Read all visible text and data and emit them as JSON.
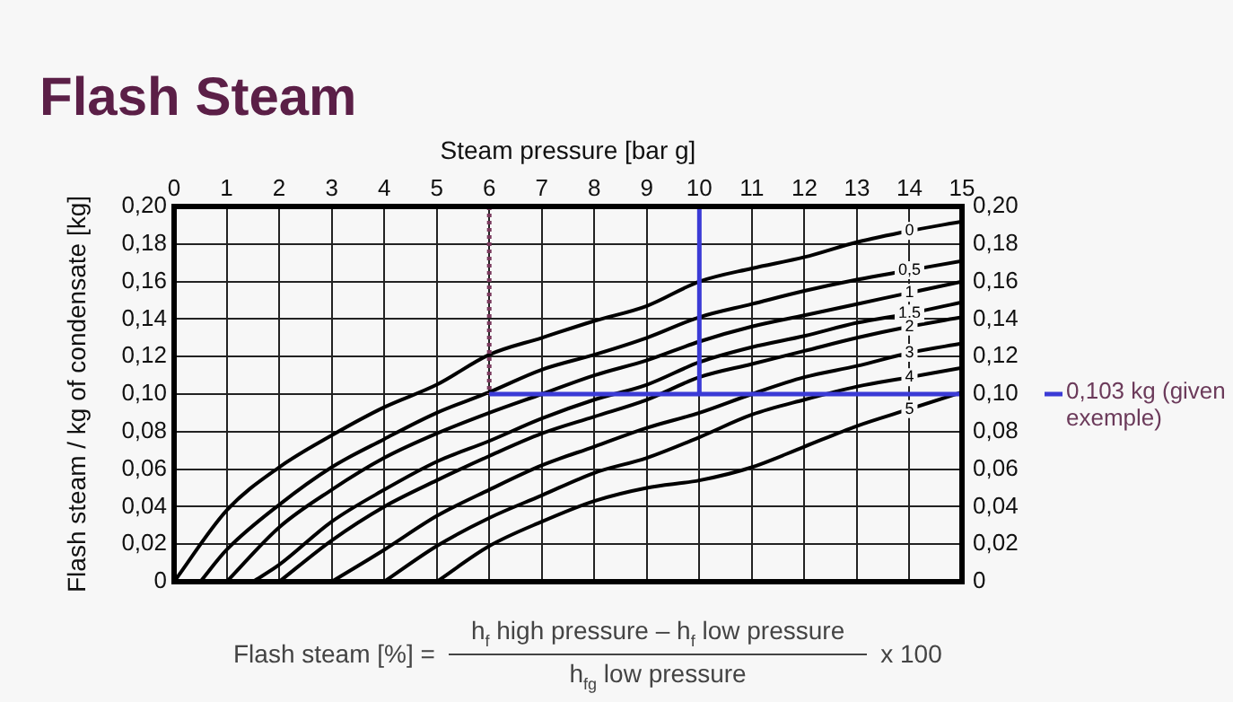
{
  "chart_data": {
    "type": "line",
    "title": "Flash Steam",
    "xlabel": "Steam pressure [bar g]",
    "ylabel": "Flash steam / kg of condensate [kg]",
    "xlim": [
      0,
      15
    ],
    "xticks": [
      0,
      1,
      2,
      3,
      4,
      5,
      6,
      7,
      8,
      9,
      10,
      11,
      12,
      13,
      14,
      15
    ],
    "ylim": [
      0,
      0.2
    ],
    "yticks": [
      0,
      {
        "value": 0.02,
        "label": "0,02"
      },
      {
        "value": 0.04,
        "label": "0,04"
      },
      {
        "value": 0.06,
        "label": "0,06"
      },
      {
        "value": 0.08,
        "label": "0,08"
      },
      {
        "value": 0.1,
        "label": "0,10"
      },
      {
        "value": 0.12,
        "label": "0,12"
      },
      {
        "value": 0.14,
        "label": "0,14"
      },
      {
        "value": 0.16,
        "label": "0,16"
      },
      {
        "value": 0.18,
        "label": "0,18"
      },
      {
        "value": 0.2,
        "label": "0,20"
      }
    ],
    "y2lim": [
      0,
      0.2
    ],
    "y2ticks": [
      0,
      {
        "value": 0.02,
        "label": "0,02"
      },
      {
        "value": 0.04,
        "label": "0,04"
      },
      {
        "value": 0.06,
        "label": "0,06"
      },
      {
        "value": 0.08,
        "label": "0,08"
      },
      {
        "value": 0.1,
        "label": "0,10"
      },
      {
        "value": 0.12,
        "label": "0,12"
      },
      {
        "value": 0.14,
        "label": "0,14"
      },
      {
        "value": 0.16,
        "label": "0,16"
      },
      {
        "value": 0.18,
        "label": "0,18"
      },
      {
        "value": 0.2,
        "label": "0,20"
      }
    ],
    "grid": true,
    "legend": false,
    "marker": "none",
    "line_style": "solid",
    "series": [
      {
        "name": "0",
        "color": "#000000",
        "x": [
          0,
          1,
          2,
          3,
          4,
          5,
          6,
          7,
          8,
          9,
          10,
          11,
          12,
          13,
          14,
          15
        ],
        "values": [
          0,
          0.038,
          0.061,
          0.078,
          0.093,
          0.105,
          0.121,
          0.13,
          0.139,
          0.147,
          0.16,
          0.167,
          0.173,
          0.181,
          0.187,
          0.192
        ]
      },
      {
        "name": "0,5",
        "color": "#000000",
        "x": [
          0.5,
          1,
          2,
          3,
          4,
          5,
          6,
          7,
          8,
          9,
          10,
          11,
          12,
          13,
          14,
          15
        ],
        "values": [
          0,
          0.017,
          0.041,
          0.061,
          0.076,
          0.09,
          0.101,
          0.113,
          0.121,
          0.13,
          0.141,
          0.148,
          0.155,
          0.161,
          0.166,
          0.171
        ]
      },
      {
        "name": "1",
        "color": "#000000",
        "x": [
          1,
          2,
          3,
          4,
          5,
          6,
          7,
          8,
          9,
          10,
          11,
          12,
          13,
          14,
          15
        ],
        "values": [
          0,
          0.029,
          0.049,
          0.066,
          0.079,
          0.09,
          0.1,
          0.11,
          0.118,
          0.128,
          0.136,
          0.142,
          0.148,
          0.154,
          0.16
        ]
      },
      {
        "name": "1,5",
        "color": "#000000",
        "x": [
          1.5,
          2,
          3,
          4,
          5,
          6,
          7,
          8,
          9,
          10,
          11,
          12,
          13,
          14,
          15
        ],
        "values": [
          0,
          0.009,
          0.032,
          0.049,
          0.064,
          0.075,
          0.087,
          0.097,
          0.105,
          0.117,
          0.125,
          0.131,
          0.138,
          0.143,
          0.149
        ]
      },
      {
        "name": "2",
        "color": "#000000",
        "x": [
          2,
          3,
          4,
          5,
          6,
          7,
          8,
          9,
          10,
          11,
          12,
          13,
          14,
          15
        ],
        "values": [
          0,
          0.022,
          0.04,
          0.054,
          0.067,
          0.079,
          0.088,
          0.097,
          0.109,
          0.116,
          0.123,
          0.13,
          0.136,
          0.141
        ]
      },
      {
        "name": "3",
        "color": "#000000",
        "x": [
          3,
          4,
          5,
          6,
          7,
          8,
          9,
          10,
          11,
          12,
          13,
          14,
          15
        ],
        "values": [
          0,
          0.017,
          0.035,
          0.049,
          0.062,
          0.072,
          0.082,
          0.09,
          0.1,
          0.109,
          0.115,
          0.122,
          0.127
        ]
      },
      {
        "name": "4",
        "color": "#000000",
        "x": [
          4,
          5,
          6,
          7,
          8,
          9,
          10,
          11,
          12,
          13,
          14,
          15
        ],
        "values": [
          0,
          0.019,
          0.034,
          0.046,
          0.058,
          0.066,
          0.077,
          0.089,
          0.097,
          0.104,
          0.109,
          0.114
        ]
      },
      {
        "name": "5",
        "color": "#000000",
        "x": [
          5,
          6,
          7,
          8,
          9,
          10,
          11,
          12,
          13,
          14,
          15
        ],
        "values": [
          0,
          0.019,
          0.032,
          0.043,
          0.05,
          0.054,
          0.061,
          0.072,
          0.083,
          0.092,
          0.101
        ]
      }
    ],
    "ref_lines": [
      {
        "axis": "x",
        "value": 6,
        "color": "#7a3a5e",
        "line_style": "dotted"
      },
      {
        "axis": "x",
        "value": 10,
        "color": "#3b3bd6",
        "line_style": "solid"
      },
      {
        "axis": "y",
        "value": 0.1,
        "color": "#3b3bd6",
        "line_style": "solid"
      }
    ],
    "annotations": [
      "Flash steam [%] =",
      "h$_{f}$ high pressure – h$_{f}$ low pressure",
      "h$_{fg}$ low pressure",
      "x 100",
      "0,103 kg (given exemple)"
    ]
  }
}
